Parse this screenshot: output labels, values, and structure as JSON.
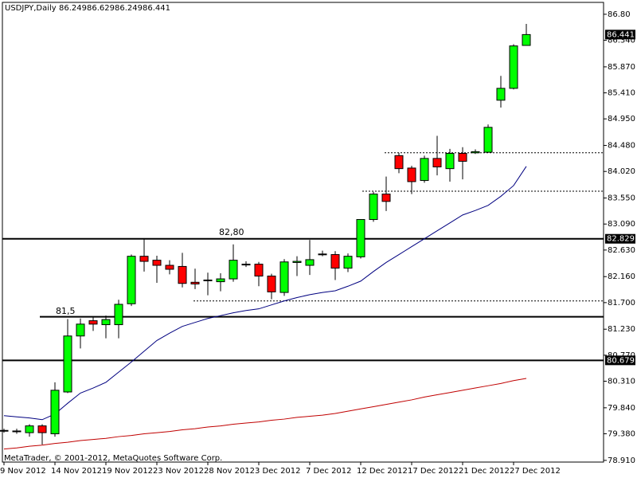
{
  "chart_data": {
    "type": "candlestick",
    "title": "USDJPY,Daily",
    "watermark": "MetaTrader, © 2001-2012, MetaQuotes Software Corp.",
    "categories": [
      "9 Nov 2012",
      null,
      null,
      null,
      "14 Nov 2012",
      null,
      null,
      null,
      "19 Nov 2012",
      null,
      null,
      null,
      "23 Nov 2012",
      null,
      null,
      null,
      "28 Nov 2012",
      null,
      null,
      null,
      "3 Dec 2012",
      null,
      null,
      null,
      "7 Dec 2012",
      null,
      null,
      null,
      "12 Dec 2012",
      null,
      null,
      null,
      "17 Dec 2012",
      null,
      null,
      null,
      "21 Dec 2012",
      null,
      null,
      null,
      "27 Dec 2012",
      null
    ],
    "open": [
      79.43,
      79.43,
      79.4,
      79.52,
      79.38,
      80.12,
      81.11,
      81.38,
      81.31,
      81.31,
      81.68,
      82.52,
      82.45,
      82.36,
      82.34,
      82.06,
      82.09,
      82.07,
      82.12,
      82.38,
      82.38,
      82.17,
      81.88,
      82.41,
      82.36,
      82.55,
      82.55,
      82.31,
      82.51,
      83.17,
      83.62,
      84.3,
      84.08,
      83.86,
      84.25,
      84.07,
      84.34,
      84.35,
      84.36,
      85.28,
      85.49,
      86.249
    ],
    "high": [
      79.47,
      79.47,
      79.55,
      79.55,
      80.29,
      81.41,
      81.42,
      81.45,
      81.47,
      81.75,
      82.55,
      82.83,
      82.53,
      82.45,
      82.58,
      82.3,
      82.23,
      82.22,
      82.73,
      82.43,
      82.42,
      82.21,
      82.47,
      82.52,
      82.81,
      82.62,
      82.61,
      82.57,
      83.17,
      83.66,
      83.93,
      84.35,
      84.12,
      84.3,
      84.65,
      84.42,
      84.45,
      84.41,
      84.85,
      85.71,
      86.27,
      86.629
    ],
    "low": [
      79.4,
      79.38,
      79.33,
      79.19,
      79.33,
      80.1,
      80.89,
      81.2,
      81.07,
      81.07,
      81.64,
      82.25,
      82.05,
      82.2,
      81.97,
      81.94,
      81.83,
      81.9,
      82.07,
      82.33,
      81.99,
      81.76,
      81.82,
      82.17,
      82.19,
      82.52,
      82.1,
      82.24,
      82.48,
      83.13,
      83.32,
      83.99,
      83.62,
      83.82,
      83.95,
      83.84,
      83.88,
      84.33,
      84.35,
      85.15,
      85.47,
      86.249
    ],
    "close": [
      79.44,
      79.42,
      79.52,
      79.4,
      80.15,
      81.11,
      81.32,
      81.32,
      81.4,
      81.67,
      82.52,
      82.43,
      82.36,
      82.29,
      82.04,
      82.03,
      82.1,
      82.12,
      82.45,
      82.37,
      82.17,
      81.89,
      82.42,
      82.43,
      82.46,
      82.56,
      82.31,
      82.52,
      83.17,
      83.62,
      83.49,
      84.07,
      83.84,
      84.25,
      84.1,
      84.34,
      84.2,
      84.37,
      84.8,
      85.49,
      86.24,
      86.441
    ],
    "up_color": "#00ff00",
    "down_color": "#ff0000",
    "lines": [
      {
        "color": "#000080",
        "values": [
          79.7,
          79.68,
          79.66,
          79.63,
          79.73,
          79.92,
          80.1,
          80.19,
          80.29,
          80.47,
          80.65,
          80.84,
          81.03,
          81.16,
          81.28,
          81.35,
          81.42,
          81.47,
          81.52,
          81.56,
          81.59,
          81.66,
          81.73,
          81.79,
          81.84,
          81.88,
          81.91,
          81.99,
          82.08,
          82.25,
          82.41,
          82.55,
          82.69,
          82.83,
          82.97,
          83.11,
          83.25,
          83.33,
          83.42,
          83.58,
          83.77,
          84.11
        ]
      },
      {
        "color": "#c00000",
        "values": [
          79.11,
          79.13,
          79.16,
          79.18,
          79.21,
          79.23,
          79.26,
          79.28,
          79.3,
          79.33,
          79.35,
          79.38,
          79.4,
          79.42,
          79.45,
          79.47,
          79.5,
          79.52,
          79.55,
          79.57,
          79.59,
          79.62,
          79.64,
          79.67,
          79.69,
          79.71,
          79.74,
          79.78,
          79.82,
          79.86,
          79.9,
          79.94,
          79.98,
          80.03,
          80.07,
          80.11,
          80.15,
          80.19,
          80.23,
          80.27,
          80.32,
          80.36
        ]
      }
    ],
    "levels": [
      {
        "value": 82.829,
        "style": "solid"
      },
      {
        "value": 81.45,
        "style": "solid"
      },
      {
        "value": 80.679,
        "style": "solid"
      },
      {
        "value": 84.35,
        "style": "dashed"
      },
      {
        "value": 83.67,
        "style": "dashed"
      },
      {
        "value": 81.73,
        "style": "dashed"
      }
    ],
    "price_markers": [
      86.441,
      82.829,
      80.679
    ],
    "annotations": [
      "82,80",
      "81,5"
    ],
    "ylim": [
      78.88,
      87.01
    ],
    "yticks": [
      {
        "value": 86.8,
        "label": "86.80"
      },
      {
        "value": 86.34,
        "label": "86.340"
      },
      {
        "value": 85.87,
        "label": "85.870"
      },
      {
        "value": 85.41,
        "label": "85.410"
      },
      {
        "value": 84.95,
        "label": "84.950"
      },
      {
        "value": 84.48,
        "label": "84.480"
      },
      {
        "value": 84.02,
        "label": "84.020"
      },
      {
        "value": 83.55,
        "label": "83.550"
      },
      {
        "value": 83.09,
        "label": "83.090"
      },
      {
        "value": 82.63,
        "label": "82.630"
      },
      {
        "value": 82.16,
        "label": "82.160"
      },
      {
        "value": 81.7,
        "label": "81.700"
      },
      {
        "value": 81.23,
        "label": "81.230"
      },
      {
        "value": 80.77,
        "label": "80.770"
      },
      {
        "value": 80.31,
        "label": "80.310"
      },
      {
        "value": 79.84,
        "label": "79.840"
      },
      {
        "value": 79.38,
        "label": "79.380"
      },
      {
        "value": 78.91,
        "label": "78.910"
      }
    ],
    "grid": false
  }
}
